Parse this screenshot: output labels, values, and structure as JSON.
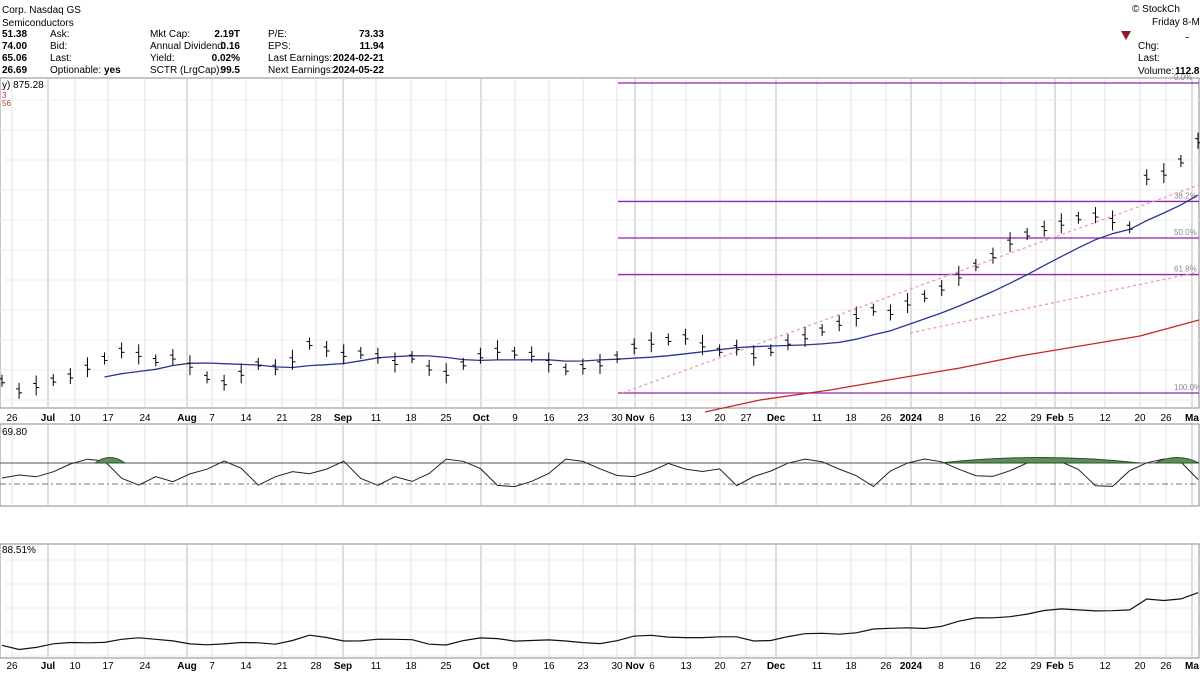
{
  "header": {
    "company": "Corp. Nasdaq GS",
    "sector": "Semiconductors",
    "brand": "© StockCh",
    "date": "Friday 8-M",
    "quote": {
      "vals": [
        "51.38",
        "74.00",
        "65.06",
        "26.69"
      ],
      "labels": [
        "Ask:",
        "Bid:",
        "Last:",
        "Optionable:"
      ],
      "optionable": "yes"
    },
    "stats1": {
      "labels": [
        "Mkt Cap:",
        "Annual Dividend:",
        "Yield:",
        "SCTR (LrgCap):"
      ],
      "values": [
        "2.19T",
        "0.16",
        "0.02%",
        "99.5"
      ]
    },
    "stats2": {
      "labels": [
        "P/E:",
        "EPS:",
        "Last Earnings:",
        "Next Earnings:"
      ],
      "values": [
        "73.33",
        "11.94",
        "2024-02-21",
        "2024-05-22"
      ]
    },
    "right": {
      "labels": [
        "Chg:",
        "Last:"
      ],
      "volume_label": "Volume:",
      "volume_value": "112.8"
    }
  },
  "legend": {
    "line1": "y) 875.28",
    "line2": "3",
    "line3": "56"
  },
  "chart_data": {
    "type": "line",
    "x_labels": [
      "26",
      "Jul",
      "10",
      "17",
      "24",
      "Aug",
      "7",
      "14",
      "21",
      "28",
      "Sep",
      "11",
      "18",
      "25",
      "Oct",
      "9",
      "16",
      "23",
      "30",
      "Nov",
      "6",
      "13",
      "20",
      "27",
      "Dec",
      "11",
      "18",
      "26",
      "2024",
      "8",
      "16",
      "22",
      "29",
      "Feb",
      "5",
      "12",
      "20",
      "26",
      "Ma"
    ],
    "bold_labels": [
      "Jul",
      "Aug",
      "Sep",
      "Oct",
      "Nov",
      "Dec",
      "2024",
      "Feb",
      "Ma"
    ],
    "fib_levels": [
      {
        "label": "0.0%",
        "price": 875.3
      },
      {
        "label": "38.2%",
        "price": 700.2
      },
      {
        "label": "50.0%",
        "price": 646.1
      },
      {
        "label": "61.8%",
        "price": 592.0
      },
      {
        "label": "100.0%",
        "price": 416.9
      }
    ],
    "price_series_approx": [
      [
        0,
        435
      ],
      [
        2,
        420
      ],
      [
        4,
        428
      ],
      [
        6,
        436
      ],
      [
        8,
        442
      ],
      [
        10,
        455
      ],
      [
        12,
        468
      ],
      [
        14,
        480
      ],
      [
        16,
        474
      ],
      [
        18,
        465
      ],
      [
        20,
        470
      ],
      [
        22,
        458
      ],
      [
        24,
        440
      ],
      [
        26,
        432
      ],
      [
        28,
        446
      ],
      [
        30,
        460
      ],
      [
        32,
        455
      ],
      [
        34,
        466
      ],
      [
        36,
        490
      ],
      [
        38,
        482
      ],
      [
        40,
        474
      ],
      [
        42,
        476
      ],
      [
        44,
        472
      ],
      [
        46,
        462
      ],
      [
        48,
        470
      ],
      [
        50,
        454
      ],
      [
        52,
        446
      ],
      [
        54,
        460
      ],
      [
        56,
        472
      ],
      [
        58,
        480
      ],
      [
        60,
        476
      ],
      [
        62,
        474
      ],
      [
        64,
        462
      ],
      [
        66,
        452
      ],
      [
        68,
        456
      ],
      [
        70,
        460
      ],
      [
        72,
        470
      ],
      [
        74,
        486
      ],
      [
        76,
        492
      ],
      [
        78,
        496
      ],
      [
        80,
        500
      ],
      [
        82,
        488
      ],
      [
        84,
        480
      ],
      [
        86,
        484
      ],
      [
        88,
        472
      ],
      [
        90,
        480
      ],
      [
        92,
        492
      ],
      [
        94,
        500
      ],
      [
        96,
        510
      ],
      [
        98,
        520
      ],
      [
        100,
        530
      ],
      [
        102,
        540
      ],
      [
        104,
        536
      ],
      [
        106,
        550
      ],
      [
        108,
        560
      ],
      [
        110,
        572
      ],
      [
        112,
        590
      ],
      [
        114,
        606
      ],
      [
        116,
        620
      ],
      [
        118,
        640
      ],
      [
        120,
        652
      ],
      [
        122,
        660
      ],
      [
        124,
        668
      ],
      [
        126,
        676
      ],
      [
        128,
        680
      ],
      [
        130,
        672
      ],
      [
        132,
        662
      ],
      [
        134,
        736
      ],
      [
        136,
        742
      ],
      [
        138,
        760
      ],
      [
        140,
        790
      ]
    ],
    "indicator1_value": "69.80",
    "indicator2_value": "88.51%"
  }
}
